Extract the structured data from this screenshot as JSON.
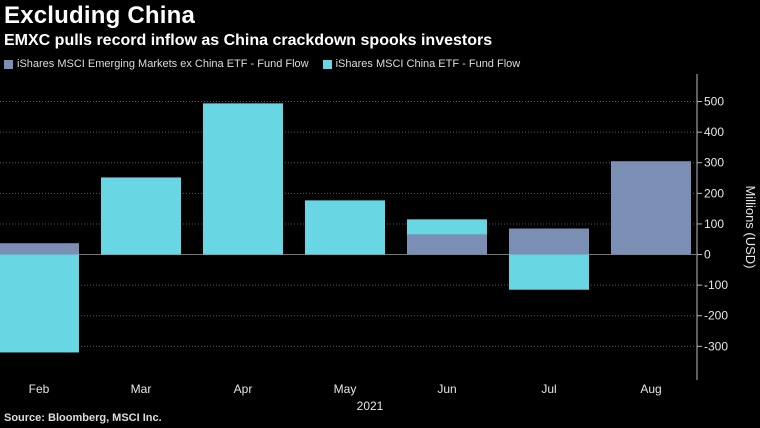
{
  "title": "Excluding China",
  "subtitle": "EMXC pulls record inflow as China crackdown spooks investors",
  "source": "Source: Bloomberg, MSCI Inc.",
  "colors": {
    "background": "#000000",
    "emxc": "#7b8fb5",
    "china": "#69d6e4",
    "grid": "#555555"
  },
  "chart_data": {
    "type": "bar",
    "stacked": true,
    "categories": [
      "Feb",
      "Mar",
      "Apr",
      "May",
      "Jun",
      "Jul",
      "Aug"
    ],
    "year_label": "2021",
    "series": [
      {
        "name": "iShares MSCI Emerging Markets ex China ETF - Fund Flow",
        "color": "#7b8fb5",
        "values": [
          37,
          0,
          0,
          0,
          65,
          85,
          305
        ]
      },
      {
        "name": "iShares MSCI China ETF - Fund Flow",
        "color": "#69d6e4",
        "values": [
          -320,
          252,
          494,
          177,
          50,
          -115,
          0
        ]
      }
    ],
    "ylabel": "Millions (USD)",
    "ylim": [
      -410,
      590
    ],
    "yticks": [
      -300,
      -200,
      -100,
      0,
      100,
      200,
      300,
      400,
      500
    ],
    "ytick_labels": [
      "-300",
      "-200",
      "-100",
      "0",
      "100",
      "200",
      "300",
      "400",
      "500"
    ],
    "y_axis_position": "right",
    "legend_position": "top-left",
    "grid": "horizontal dotted"
  }
}
